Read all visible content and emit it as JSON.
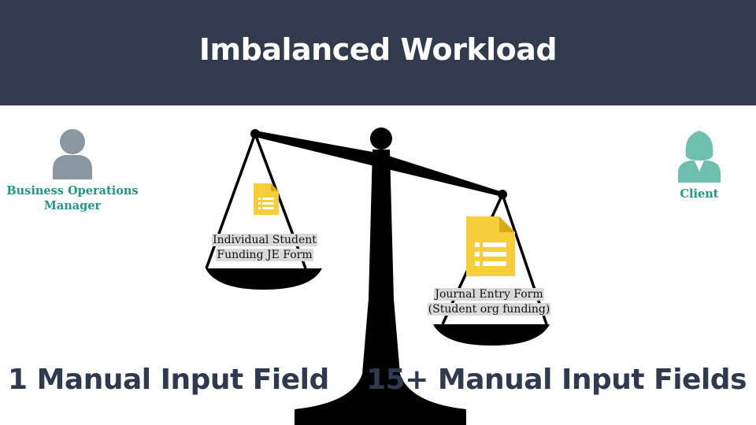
{
  "header": {
    "title": "Imbalanced Workload"
  },
  "left_person": {
    "icon": "person-icon",
    "role_line1": "Business Operations",
    "role_line2": "Manager",
    "color": "#8a97a0"
  },
  "right_person": {
    "icon": "female-person-icon",
    "role": "Client",
    "color": "#6fbfae"
  },
  "left_pan": {
    "icon": "document-icon",
    "label_line1": "Individual Student",
    "label_line2": "Funding JE Form",
    "count_label": "1 Manual Input Field"
  },
  "right_pan": {
    "icon": "document-icon",
    "label_line1": "Journal Entry Form",
    "label_line2": "(Student org funding)",
    "count_label": "15+ Manual Input Fields"
  },
  "colors": {
    "header_bg": "#323a4d",
    "accent_teal": "#1d9a86",
    "document_yellow": "#f6cd3a",
    "count_text": "#2f3a4f"
  }
}
